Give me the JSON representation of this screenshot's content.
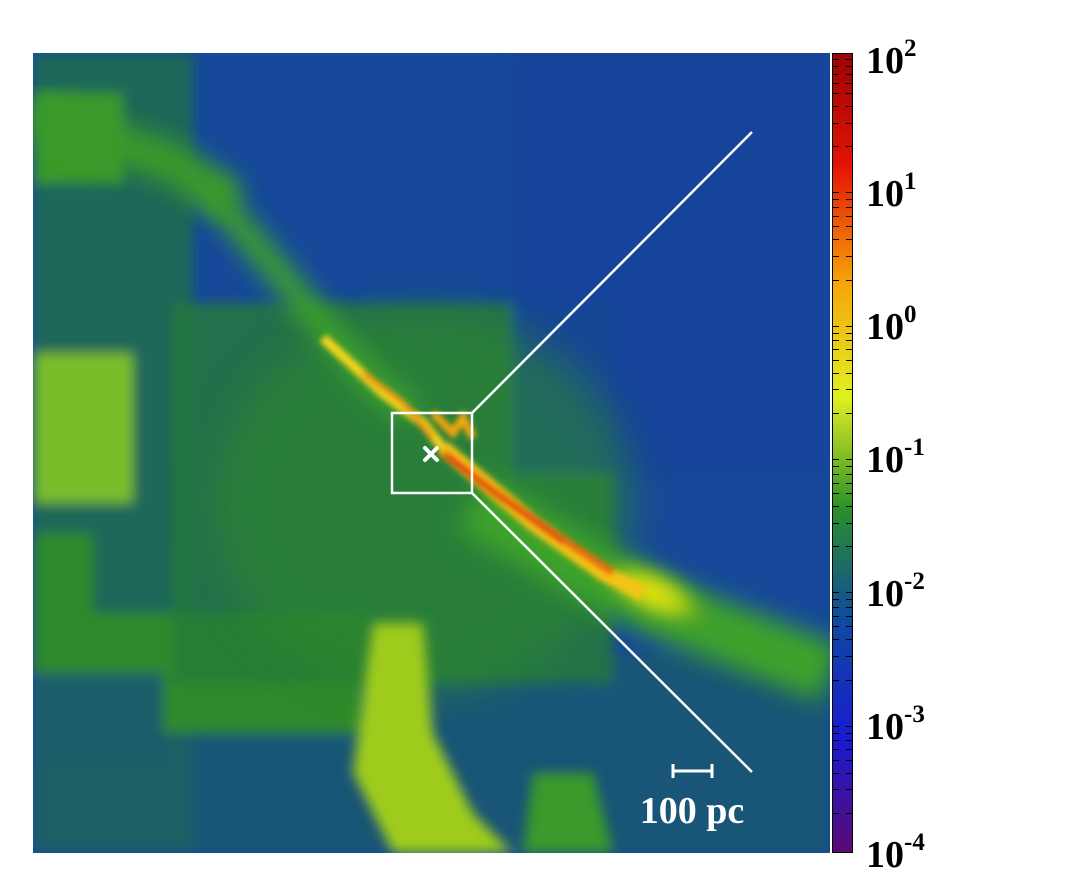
{
  "image": {
    "scale_bar_label": "100 pc",
    "colors": {
      "background": "#17499a",
      "filament": "#2f8a2a",
      "bright": "#f2e20f",
      "core": "#e0150a",
      "overlay": "#ffffff"
    }
  },
  "colorbar": {
    "scale": "log",
    "colormap": [
      "#5a0a73",
      "#1a1ad0",
      "#0f4aa0",
      "#2b8f2a",
      "#e0f020",
      "#f6a70a",
      "#e31305",
      "#9a0505"
    ],
    "ticks": [
      {
        "base": "10",
        "exp": "2"
      },
      {
        "base": "10",
        "exp": "1"
      },
      {
        "base": "10",
        "exp": "0"
      },
      {
        "base": "10",
        "exp": "-1"
      },
      {
        "base": "10",
        "exp": "-2"
      },
      {
        "base": "10",
        "exp": "-3"
      },
      {
        "base": "10",
        "exp": "-4"
      }
    ]
  }
}
